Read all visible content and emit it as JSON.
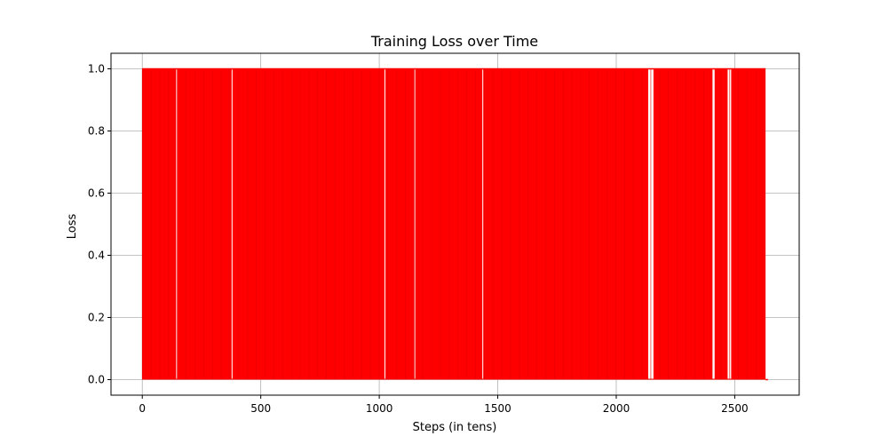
{
  "chart_data": {
    "type": "line",
    "title": "Training Loss over Time",
    "xlabel": "Steps (in tens)",
    "ylabel": "Loss",
    "xlim": [
      -132,
      2772
    ],
    "ylim": [
      -0.05,
      1.05
    ],
    "x_ticks": [
      0,
      500,
      1000,
      1500,
      2000,
      2500
    ],
    "x_tick_labels": [
      "0",
      "500",
      "1000",
      "1500",
      "2000",
      "2500"
    ],
    "y_ticks": [
      0.0,
      0.2,
      0.4,
      0.6,
      0.8,
      1.0
    ],
    "y_tick_labels": [
      "0.0",
      "0.2",
      "0.4",
      "0.6",
      "0.8",
      "1.0"
    ],
    "grid": true,
    "legend": "none",
    "series": [
      {
        "color": "#ff0000",
        "x_range": [
          0,
          2640
        ],
        "y_values": [
          0,
          1
        ],
        "gaps_at_top_value_1": [
          [
            143,
            146
          ],
          [
            377,
            379
          ],
          [
            1022,
            1024
          ],
          [
            1148,
            1150
          ],
          [
            1435,
            1438
          ],
          [
            2135,
            2157
          ],
          [
            2405,
            2415
          ],
          [
            2470,
            2485
          ]
        ],
        "segment_at_value_0_tail": [
          2630,
          2640
        ]
      }
    ]
  }
}
